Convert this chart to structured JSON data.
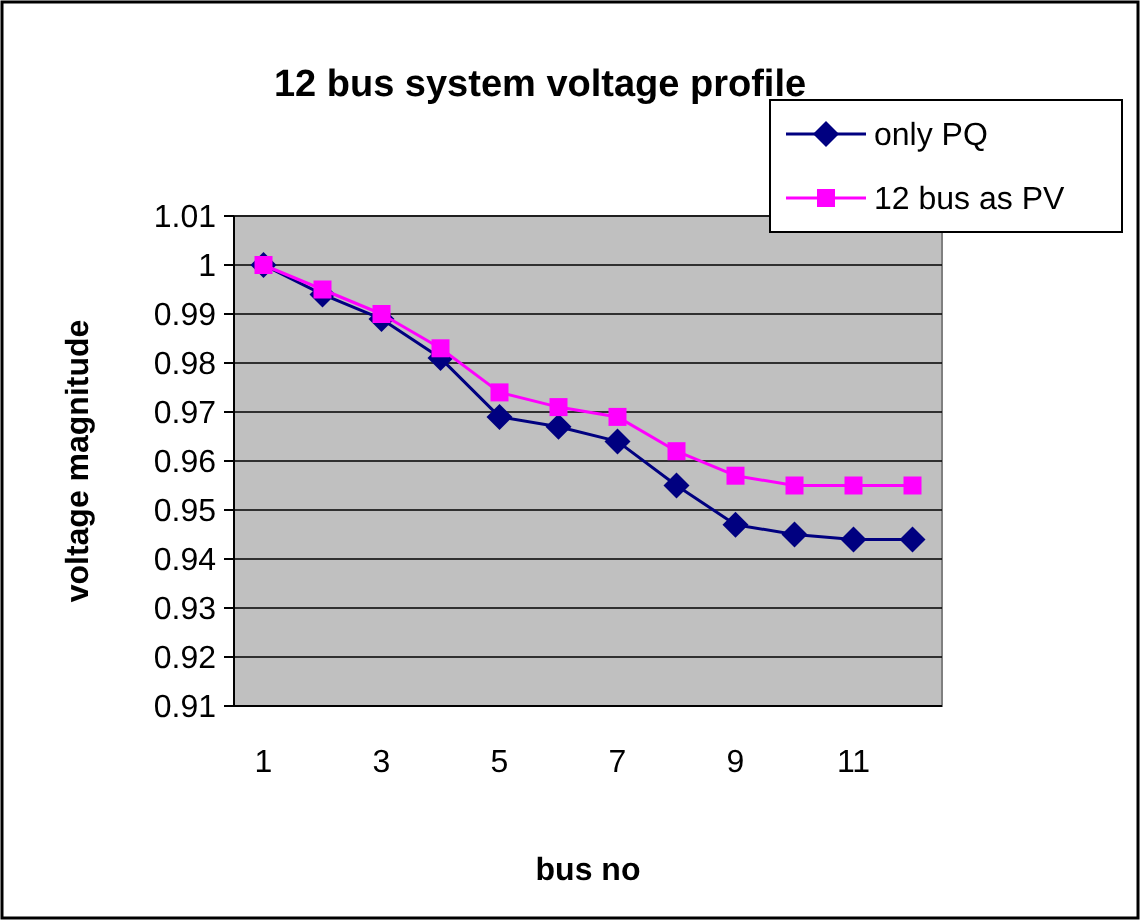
{
  "chart_data": {
    "type": "line",
    "title": "12 bus system voltage profile",
    "xlabel": "bus no",
    "ylabel": "voltage magnitude",
    "categories": [
      "1",
      null,
      "3",
      null,
      "5",
      null,
      "7",
      null,
      "9",
      null,
      "11",
      null
    ],
    "series": [
      {
        "name": "only PQ",
        "color": "#000080",
        "marker": "diamond",
        "values": [
          1.0,
          0.994,
          0.989,
          0.981,
          0.969,
          0.967,
          0.964,
          0.955,
          0.947,
          0.945,
          0.944,
          0.944
        ]
      },
      {
        "name": "12 bus as PV",
        "color": "#ff00ff",
        "marker": "square",
        "values": [
          1.0,
          0.995,
          0.99,
          0.983,
          0.974,
          0.971,
          0.969,
          0.962,
          0.957,
          0.955,
          0.955,
          0.955
        ]
      }
    ],
    "ylim": [
      0.91,
      1.01
    ],
    "yticks": [
      0.91,
      0.92,
      0.93,
      0.94,
      0.95,
      0.96,
      0.97,
      0.98,
      0.99,
      1,
      1.01
    ],
    "grid": "y",
    "legend": "top right"
  }
}
